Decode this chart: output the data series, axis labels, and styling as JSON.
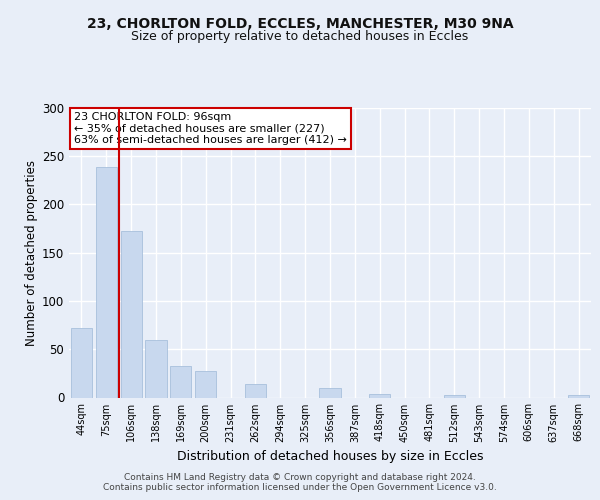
{
  "title1": "23, CHORLTON FOLD, ECCLES, MANCHESTER, M30 9NA",
  "title2": "Size of property relative to detached houses in Eccles",
  "xlabel": "Distribution of detached houses by size in Eccles",
  "ylabel": "Number of detached properties",
  "categories": [
    "44sqm",
    "75sqm",
    "106sqm",
    "138sqm",
    "169sqm",
    "200sqm",
    "231sqm",
    "262sqm",
    "294sqm",
    "325sqm",
    "356sqm",
    "387sqm",
    "418sqm",
    "450sqm",
    "481sqm",
    "512sqm",
    "543sqm",
    "574sqm",
    "606sqm",
    "637sqm",
    "668sqm"
  ],
  "values": [
    72,
    238,
    172,
    60,
    33,
    27,
    0,
    14,
    0,
    0,
    10,
    0,
    4,
    0,
    0,
    3,
    0,
    0,
    0,
    0,
    3
  ],
  "bar_color": "#c8d8ee",
  "bar_edge_color": "#a8c0dc",
  "vline_color": "#cc0000",
  "vline_x": 1.5,
  "annotation_text": "23 CHORLTON FOLD: 96sqm\n← 35% of detached houses are smaller (227)\n63% of semi-detached houses are larger (412) →",
  "annotation_box_color": "#ffffff",
  "annotation_box_edge": "#cc0000",
  "footer": "Contains HM Land Registry data © Crown copyright and database right 2024.\nContains public sector information licensed under the Open Government Licence v3.0.",
  "bg_color": "#e8eef8",
  "plot_bg_color": "#e8eef8",
  "grid_color": "#ffffff",
  "ylim": [
    0,
    300
  ],
  "yticks": [
    0,
    50,
    100,
    150,
    200,
    250,
    300
  ]
}
